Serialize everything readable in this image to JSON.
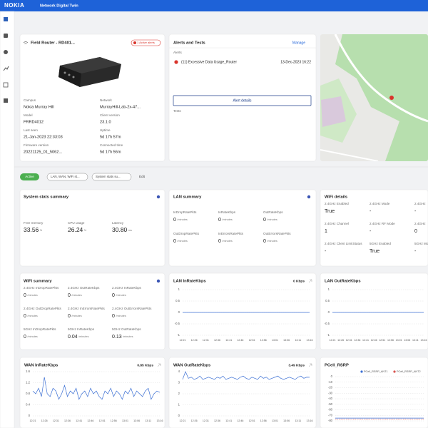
{
  "header": {
    "logo": "NOKIA",
    "title": "Network Digital Twin"
  },
  "device": {
    "title": "Field Router - RD401...",
    "badge": "1 Active alerts",
    "fields": [
      {
        "label": "Campus",
        "value": "Nokia Murray Hill"
      },
      {
        "label": "Network",
        "value": "MurrayHill-Lab-2x-47..."
      },
      {
        "label": "Model",
        "value": "FRRD4012"
      },
      {
        "label": "Client version",
        "value": "23.1.0"
      },
      {
        "label": "Last seen",
        "value": "21-Jan-2023 22:33:03"
      },
      {
        "label": "Uptime",
        "value": "5d 17h 57m"
      },
      {
        "label": "Firmware version",
        "value": "20221125_01_5062..."
      },
      {
        "label": "Connected time",
        "value": "5d 17h 56m"
      }
    ]
  },
  "alerts": {
    "title": "Alerts and Tests",
    "manage": "Manage",
    "alerts_label": "Alerts",
    "items": [
      {
        "text": "(11) Excessive Data Usage_Router",
        "date": "13-Dec-2023 16:22"
      }
    ],
    "button": "Alert details",
    "tests_label": "Tests"
  },
  "filters": {
    "status": "Active",
    "dropdowns": [
      "LAN, WAN, WiFi st...",
      "System stats su..."
    ],
    "edit": "Edit"
  },
  "system_stats": {
    "title": "System stats summary",
    "metrics": [
      {
        "label": "Free memory",
        "value": "33.56",
        "unit": "%"
      },
      {
        "label": "CPU usage",
        "value": "26.24",
        "unit": "%"
      },
      {
        "label": "Latency",
        "value": "30.80",
        "unit": "ms"
      }
    ]
  },
  "lan_summary": {
    "title": "LAN summary",
    "metrics": [
      {
        "label": "InDropRatePkts",
        "value": "0",
        "unit": "/minutes"
      },
      {
        "label": "InRateKbps",
        "value": "0",
        "unit": "/minutes"
      },
      {
        "label": "OutRateKbps",
        "value": "0",
        "unit": "/minutes"
      },
      {
        "label": "OutDropRatePkts",
        "value": "0",
        "unit": "/minutes"
      },
      {
        "label": "InErrorsRatePkts",
        "value": "0",
        "unit": "/minutes"
      },
      {
        "label": "OutErrorsRatePkts",
        "value": "0",
        "unit": "/minutes"
      }
    ]
  },
  "wifi_details": {
    "title": "WiFi details",
    "metrics": [
      {
        "label": "2.4GHz Enabled",
        "value": "True"
      },
      {
        "label": "2.4GHz Mode",
        "value": "-"
      },
      {
        "label": "2.4GHz",
        "value": "-"
      },
      {
        "label": "2.4GHz Channel",
        "value": "1"
      },
      {
        "label": "2.4GHz RF Mode",
        "value": "-"
      },
      {
        "label": "2.4GHz",
        "value": "0"
      },
      {
        "label": "2.4GHz Client LimitStatus",
        "value": "-"
      },
      {
        "label": "5GHz Enabled",
        "value": "True"
      },
      {
        "label": "5GHz Mo",
        "value": "-"
      }
    ]
  },
  "wifi_summary": {
    "title": "WiFi summary",
    "metrics": [
      {
        "label": "2.4GHz InDropRatePkts",
        "value": "0",
        "unit": "/minutes"
      },
      {
        "label": "2.4GHz OutRateKbps",
        "value": "0",
        "unit": "/minutes"
      },
      {
        "label": "2.4GHz InRateKbps",
        "value": "0",
        "unit": "/minutes"
      },
      {
        "label": "2.4GHz OutDropRatePkts",
        "value": "0",
        "unit": "/minutes"
      },
      {
        "label": "2.4GHz InErrorsRatePkts",
        "value": "0",
        "unit": "/minutes"
      },
      {
        "label": "2.4GHz OutErrorsRatePkts",
        "value": "0",
        "unit": "/minutes"
      },
      {
        "label": "5GHz InDropRatePkts",
        "value": "0",
        "unit": "/minutes"
      },
      {
        "label": "5GHz InRateKbps",
        "value": "0.04",
        "unit": "/minutes"
      },
      {
        "label": "5GHz OutRateKbps",
        "value": "0.13",
        "unit": "/minutes"
      }
    ]
  },
  "charts": [
    {
      "type": "line",
      "title": "LAN InRateKbps",
      "current": "0 Kbps",
      "color": "#3b6fd4",
      "categories": [
        "12:21",
        "12:26",
        "12:31",
        "12:36",
        "12:41",
        "12:46",
        "12:51",
        "12:56",
        "13:01",
        "13:06",
        "13:11",
        "13:16"
      ],
      "values": [
        0,
        0,
        0,
        0,
        0,
        0,
        0,
        0,
        0,
        0,
        0,
        0
      ],
      "ylim": [
        -1,
        1
      ],
      "yticks": [
        -1,
        -0.5,
        0,
        0.5,
        1
      ],
      "grid": true
    },
    {
      "type": "line",
      "title": "LAN OutRateKbps",
      "color": "#3b6fd4",
      "categories": [
        "12:21",
        "12:26",
        "12:31",
        "12:36",
        "12:41",
        "12:46",
        "12:51",
        "12:56",
        "13:01",
        "13:06",
        "13:11",
        "13:16"
      ],
      "values": [
        0,
        0,
        0,
        0,
        0,
        0,
        0,
        0,
        0,
        0,
        0,
        0
      ],
      "ylim": [
        -1,
        1
      ],
      "yticks": [
        -1,
        -0.5,
        0,
        0.5,
        1
      ],
      "grid": true
    },
    {
      "type": "line",
      "title": "WAN InRateKbps",
      "current": "0.85 Kbps",
      "color": "#3b6fd4",
      "categories": [
        "12:21",
        null,
        null,
        null,
        "12:26",
        null,
        null,
        null,
        "12:31",
        null,
        null,
        null,
        "12:36",
        null,
        null,
        null,
        "12:41",
        null,
        null,
        null,
        "12:46",
        null,
        null,
        null,
        "12:51",
        null,
        null,
        null,
        "12:56",
        null,
        null,
        null,
        "13:01",
        null,
        null,
        null,
        "13:06",
        null,
        null,
        null,
        "13:11",
        null,
        null,
        null,
        "13:16"
      ],
      "values": [
        0.9,
        0.8,
        1.0,
        0.7,
        1.4,
        0.8,
        0.7,
        1.0,
        0.9,
        0.6,
        0.8,
        1.1,
        0.7,
        0.9,
        0.8,
        1.0,
        0.6,
        0.8,
        0.9,
        0.7,
        1.0,
        0.8,
        0.9,
        0.7,
        0.6,
        0.9,
        0.8,
        1.0,
        0.7,
        0.9,
        0.8,
        0.6,
        0.9,
        0.8,
        1.0,
        0.7,
        0.9,
        0.8,
        0.7,
        0.9,
        1.0,
        0.6,
        0.8,
        0.9,
        0.85
      ],
      "ylim": [
        0,
        1.6
      ],
      "yticks": [
        0,
        0.4,
        0.8,
        1.2,
        1.6
      ],
      "grid": true
    },
    {
      "type": "line",
      "title": "WAN OutRateKbps",
      "current": "3.49 Kbps",
      "color": "#3b6fd4",
      "categories": [
        "12:21",
        null,
        null,
        null,
        "12:26",
        null,
        null,
        null,
        "12:31",
        null,
        null,
        null,
        "12:36",
        null,
        null,
        null,
        "12:41",
        null,
        null,
        null,
        "12:46",
        null,
        null,
        null,
        "12:51",
        null,
        null,
        null,
        "12:56",
        null,
        null,
        null,
        "13:01",
        null,
        null,
        null,
        "13:06",
        null,
        null,
        null,
        "13:11",
        null,
        null,
        null,
        "13:16"
      ],
      "values": [
        3.3,
        4.0,
        3.4,
        3.5,
        3.3,
        3.4,
        3.6,
        3.3,
        3.4,
        3.5,
        3.4,
        3.3,
        3.5,
        3.4,
        3.6,
        3.3,
        3.4,
        3.5,
        3.4,
        3.3,
        3.5,
        3.6,
        3.4,
        3.3,
        3.5,
        3.4,
        3.3,
        3.6,
        3.4,
        3.5,
        3.3,
        3.4,
        3.5,
        3.6,
        3.4,
        3.3,
        3.4,
        3.5,
        3.4,
        3.3,
        3.5,
        3.6,
        3.4,
        3.5,
        3.49
      ],
      "ylim": [
        0,
        4
      ],
      "yticks": [
        0,
        1,
        2,
        3,
        4
      ],
      "grid": true
    },
    {
      "type": "line",
      "title": "PCell_RSRP",
      "categories": [
        null,
        null,
        null,
        null,
        null,
        null,
        null,
        null,
        null,
        null,
        null,
        null
      ],
      "series": [
        {
          "name": "PCell_RSRP_ANT1",
          "color": "#3b6fd4",
          "values": [
            -75,
            -75,
            -75,
            -75,
            -75,
            -75,
            -75,
            -75,
            -75,
            -75,
            -75,
            -75
          ]
        },
        {
          "name": "PCell_RSRP_ANT2",
          "color": "#d9534f",
          "values": [
            -77,
            -77,
            -77,
            -77,
            -77,
            -77,
            -77,
            -77,
            -77,
            -77,
            -77,
            -77
          ]
        }
      ],
      "ylim": [
        -80,
        0
      ],
      "yticks": [
        -80,
        -70,
        -60,
        -50,
        -40,
        -30,
        -20,
        -10,
        0
      ],
      "grid": true
    }
  ]
}
